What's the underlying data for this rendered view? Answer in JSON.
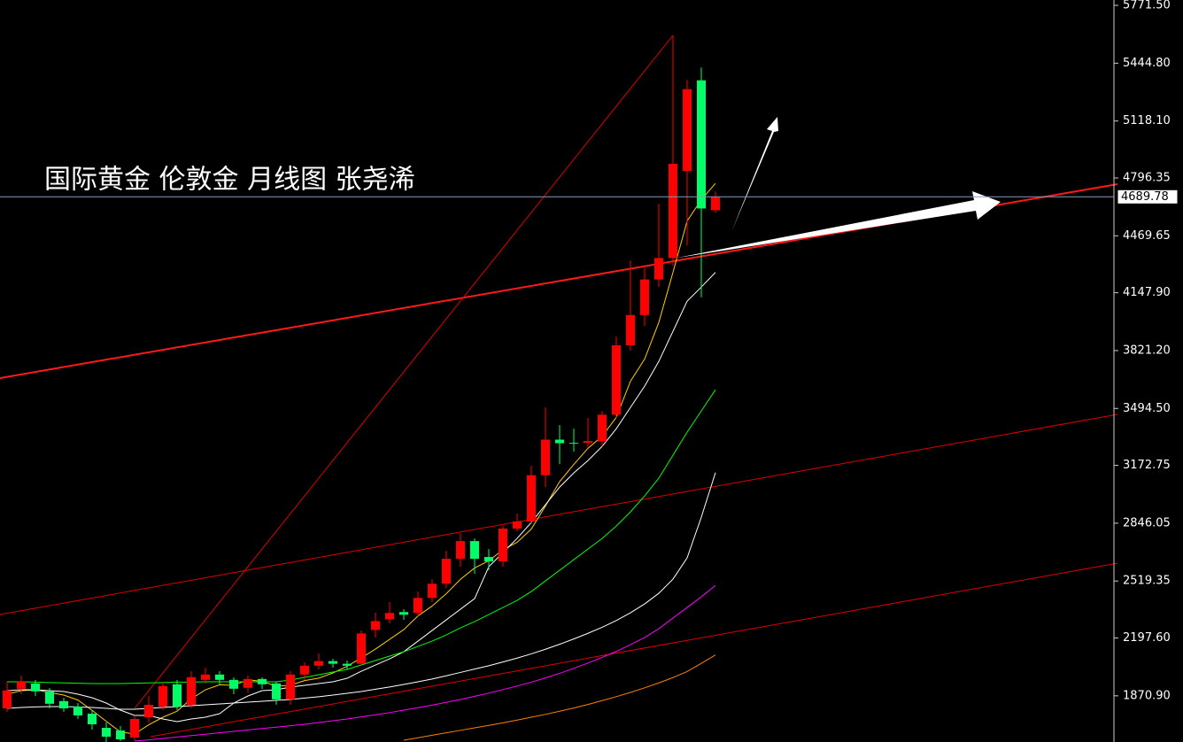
{
  "chart_data": {
    "type": "candlestick",
    "title": "国际黄金 伦敦金  月线图 张尧浠",
    "up_color": "#ff0000",
    "down_color": "#00ff66",
    "ylim": [
      1610,
      5801.7
    ],
    "yticks": [
      {
        "value": 5771.5,
        "label": "5771.50"
      },
      {
        "value": 5444.8,
        "label": "5444.80"
      },
      {
        "value": 5118.1,
        "label": "5118.10"
      },
      {
        "value": 4796.35,
        "label": "4796.35"
      },
      {
        "value": 4469.65,
        "label": "4469.65"
      },
      {
        "value": 4147.9,
        "label": "4147.90"
      },
      {
        "value": 3821.2,
        "label": "3821.20"
      },
      {
        "value": 3494.5,
        "label": "3494.50"
      },
      {
        "value": 3172.75,
        "label": "3172.75"
      },
      {
        "value": 2846.05,
        "label": "2846.05"
      },
      {
        "value": 2519.35,
        "label": "2519.35"
      },
      {
        "value": 2197.6,
        "label": "2197.60"
      },
      {
        "value": 1870.9,
        "label": "1870.90"
      }
    ],
    "last_price": 4689.78,
    "open": [
      1800,
      1911,
      1941,
      1896,
      1841,
      1810,
      1770,
      1690,
      1675,
      1635,
      1750,
      1810,
      1936,
      1820,
      1961,
      1991,
      1961,
      1916,
      1966,
      1941,
      1851,
      1991,
      2041,
      2067,
      2052,
      2052,
      2243,
      2303,
      2344,
      2339,
      2424,
      2504,
      2645,
      2745,
      2655,
      2630,
      2816,
      2856,
      3117,
      3318,
      3300,
      3300,
      3308,
      3459,
      3851,
      4022,
      4223,
      4344,
      4836,
      5348,
      4614
    ],
    "high": [
      1950,
      1985,
      1960,
      1915,
      1860,
      1830,
      1790,
      1720,
      1700,
      1760,
      1870,
      1950,
      1960,
      2010,
      2030,
      2010,
      1975,
      1985,
      1975,
      1950,
      2010,
      2060,
      2110,
      2080,
      2070,
      2240,
      2340,
      2400,
      2360,
      2460,
      2530,
      2690,
      2790,
      2760,
      2700,
      2830,
      2900,
      3170,
      3500,
      3400,
      3380,
      3440,
      3480,
      3900,
      4330,
      4290,
      4650,
      5601,
      5350,
      5420,
      4720
    ],
    "low": [
      1780,
      1880,
      1870,
      1800,
      1780,
      1740,
      1680,
      1610,
      1615,
      1620,
      1720,
      1790,
      1790,
      1800,
      1940,
      1930,
      1880,
      1890,
      1910,
      1820,
      1820,
      1960,
      2020,
      2030,
      2020,
      2040,
      2200,
      2280,
      2300,
      2320,
      2400,
      2480,
      2600,
      2560,
      2580,
      2600,
      2800,
      2840,
      3050,
      3180,
      3250,
      3270,
      3280,
      3440,
      3820,
      3960,
      4180,
      4300,
      4414,
      4122,
      4600
    ],
    "close": [
      1901,
      1951,
      1896,
      1826,
      1800,
      1760,
      1710,
      1640,
      1625,
      1740,
      1820,
      1926,
      1810,
      1976,
      1991,
      1961,
      1911,
      1966,
      1936,
      1851,
      1991,
      2041,
      2067,
      2052,
      2041,
      2223,
      2293,
      2339,
      2329,
      2424,
      2504,
      2645,
      2745,
      2645,
      2630,
      2816,
      2856,
      3117,
      3318,
      3298,
      3298,
      3310,
      3459,
      3851,
      4022,
      4223,
      4344,
      4876,
      5298,
      4624,
      4689.78
    ],
    "series": [
      {
        "color": "#ffcc00",
        "values": [
          1880,
          1900,
          1905,
          1890,
          1875,
          1847,
          1789,
          1727,
          1667,
          1655,
          1707,
          1750,
          1784,
          1854,
          1905,
          1933,
          1930,
          1961,
          1953,
          1925,
          1931,
          1957,
          1971,
          2000,
          2038,
          2085,
          2135,
          2190,
          2245,
          2322,
          2378,
          2448,
          2529,
          2593,
          2634,
          2696,
          2738,
          2813,
          2943,
          3081,
          3178,
          3269,
          3337,
          3444,
          3648,
          3773,
          3980,
          4263,
          4553,
          4673,
          4766
        ]
      },
      {
        "color": "#ffffff",
        "values": [
          1900,
          1905,
          1905,
          1900,
          1895,
          1880,
          1860,
          1830,
          1790,
          1760,
          1760,
          1740,
          1725,
          1740,
          1750,
          1770,
          1830,
          1870,
          1900,
          1905,
          1920,
          1930,
          1940,
          1950,
          1970,
          2010,
          2045,
          2080,
          2120,
          2180,
          2240,
          2300,
          2360,
          2420,
          2600,
          2680,
          2760,
          2850,
          2950,
          3050,
          3130,
          3200,
          3280,
          3380,
          3500,
          3620,
          3760,
          3930,
          4100,
          4180,
          4263
        ]
      },
      {
        "color": "#00ff00",
        "values": [
          1950,
          1950,
          1948,
          1946,
          1944,
          1942,
          1940,
          1940,
          1940,
          1942,
          1944,
          1946,
          1948,
          1948,
          1950,
          1950,
          1950,
          1950,
          1950,
          1950,
          1960,
          1975,
          1990,
          2005,
          2020,
          2045,
          2070,
          2095,
          2120,
          2150,
          2180,
          2215,
          2255,
          2290,
          2330,
          2370,
          2410,
          2460,
          2520,
          2580,
          2640,
          2700,
          2760,
          2830,
          2910,
          3000,
          3100,
          3230,
          3360,
          3480,
          3600
        ]
      },
      {
        "color": "#ffffff",
        "values": [
          1800,
          1805,
          1808,
          1810,
          1810,
          1808,
          1805,
          1800,
          1795,
          1795,
          1800,
          1805,
          1810,
          1815,
          1820,
          1825,
          1830,
          1835,
          1840,
          1845,
          1850,
          1858,
          1866,
          1875,
          1885,
          1895,
          1908,
          1921,
          1935,
          1950,
          1966,
          1984,
          2003,
          2022,
          2041,
          2062,
          2084,
          2108,
          2134,
          2162,
          2192,
          2224,
          2258,
          2296,
          2340,
          2390,
          2450,
          2530,
          2650,
          2880,
          3132
        ]
      },
      {
        "color": "#ff00ff",
        "values": [
          null,
          null,
          null,
          null,
          null,
          null,
          null,
          null,
          null,
          1615,
          1622,
          1630,
          1638,
          1646,
          1654,
          1662,
          1670,
          1678,
          1686,
          1694,
          1702,
          1710,
          1720,
          1730,
          1740,
          1752,
          1764,
          1776,
          1790,
          1804,
          1818,
          1834,
          1850,
          1868,
          1886,
          1906,
          1926,
          1948,
          1972,
          1998,
          2026,
          2056,
          2088,
          2122,
          2160,
          2200,
          2250,
          2310,
          2370,
          2430,
          2494
        ]
      },
      {
        "color": "#ff8000",
        "values": [
          null,
          null,
          null,
          null,
          null,
          null,
          null,
          null,
          null,
          null,
          null,
          null,
          null,
          null,
          null,
          null,
          null,
          null,
          null,
          null,
          null,
          null,
          null,
          null,
          null,
          null,
          null,
          null,
          1620,
          1634,
          1648,
          1662,
          1676,
          1690,
          1704,
          1718,
          1734,
          1750,
          1766,
          1784,
          1802,
          1822,
          1844,
          1866,
          1890,
          1916,
          1944,
          1974,
          2008,
          2054,
          2102
        ]
      }
    ]
  }
}
